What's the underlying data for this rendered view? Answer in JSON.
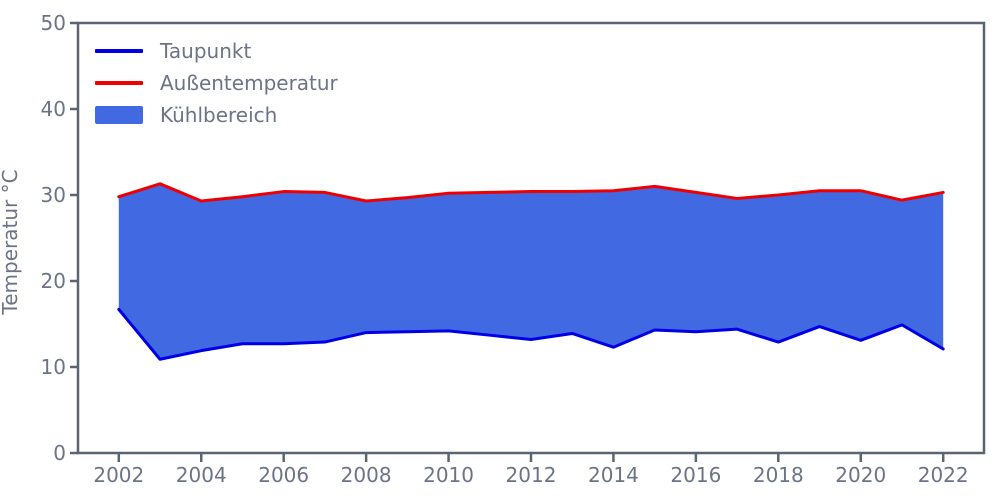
{
  "chart": {
    "ylabel": "Temperatur °C",
    "legend": [
      {
        "label": "Taupunkt",
        "type": "line",
        "color": "#0000e6"
      },
      {
        "label": "Außentemperatur",
        "type": "line",
        "color": "#ee0000"
      },
      {
        "label": "Kühlbereich",
        "type": "patch",
        "color": "#4169e1"
      }
    ]
  },
  "chart_data": {
    "type": "area",
    "title": "",
    "xlabel": "",
    "ylabel": "Temperatur °C",
    "x": [
      2002,
      2003,
      2004,
      2005,
      2006,
      2007,
      2008,
      2009,
      2010,
      2011,
      2012,
      2013,
      2014,
      2015,
      2016,
      2017,
      2018,
      2019,
      2020,
      2021,
      2022
    ],
    "series": [
      {
        "name": "Taupunkt",
        "color": "#0000e6",
        "values": [
          16.7,
          10.9,
          11.9,
          12.7,
          12.7,
          12.9,
          14.0,
          14.1,
          14.2,
          13.7,
          13.2,
          13.9,
          12.3,
          14.3,
          14.1,
          14.4,
          12.9,
          14.7,
          13.1,
          14.9,
          12.1
        ]
      },
      {
        "name": "Außentemperatur",
        "color": "#ee0000",
        "values": [
          29.8,
          31.3,
          29.3,
          29.8,
          30.4,
          30.3,
          29.3,
          29.7,
          30.2,
          30.3,
          30.4,
          30.4,
          30.5,
          31.0,
          30.3,
          29.6,
          30.0,
          30.5,
          30.5,
          29.4,
          30.3
        ]
      }
    ],
    "fill_between": {
      "name": "Kühlbereich",
      "color": "#4169e1",
      "between": [
        "Taupunkt",
        "Außentemperatur"
      ]
    },
    "ylim": [
      0,
      50
    ],
    "yticks": [
      0,
      10,
      20,
      30,
      40,
      50
    ],
    "xticks": [
      2002,
      2004,
      2006,
      2008,
      2010,
      2012,
      2014,
      2016,
      2018,
      2020,
      2022
    ],
    "grid": false,
    "legend_position": "upper-left",
    "axis_color": "#5a6472",
    "tick_label_color": "#6b7486"
  }
}
